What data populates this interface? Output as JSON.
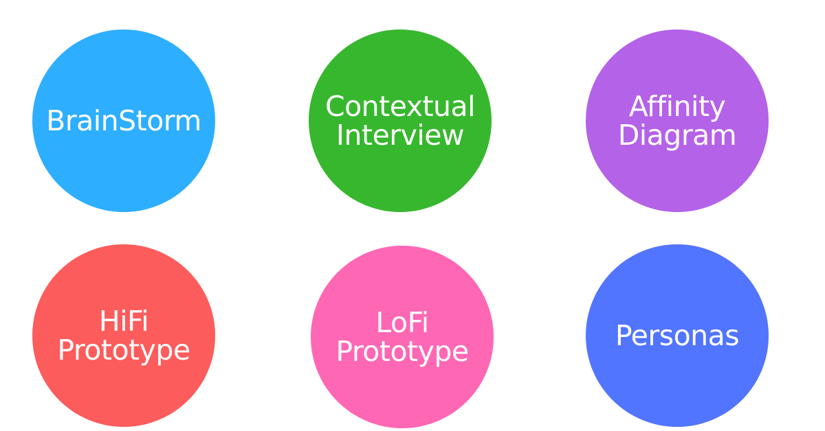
{
  "circles": [
    {
      "lines": [
        "BrainStorm"
      ],
      "color": "#2eaeff"
    },
    {
      "lines": [
        "Contextual",
        "Interview"
      ],
      "color": "#37b72e"
    },
    {
      "lines": [
        "Affinity",
        "Diagram"
      ],
      "color": "#b462e8"
    },
    {
      "lines": [
        "HiFi",
        "Prototype"
      ],
      "color": "#fd5c5c"
    },
    {
      "lines": [
        "LoFi",
        "Prototype"
      ],
      "color": "#fe67b4"
    },
    {
      "lines": [
        "Personas"
      ],
      "color": "#5275ff"
    }
  ]
}
